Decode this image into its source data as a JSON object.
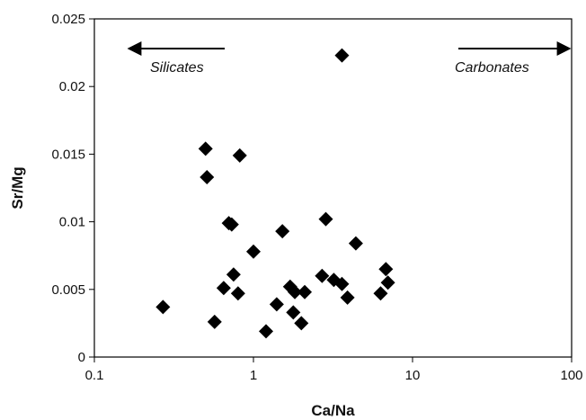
{
  "chart_data": {
    "type": "scatter",
    "title": "",
    "xlabel": "Ca/Na",
    "ylabel": "Sr/Mg",
    "xscale": "log",
    "xlim": [
      0.1,
      100
    ],
    "ylim": [
      0,
      0.025
    ],
    "x_ticks": [
      0.1,
      1,
      10,
      100
    ],
    "x_tick_labels": [
      "0.1",
      "1",
      "10",
      "100"
    ],
    "y_ticks": [
      0,
      0.005,
      0.01,
      0.015,
      0.02,
      0.025
    ],
    "y_tick_labels": [
      "0",
      "0.005",
      "0.01",
      "0.015",
      "0.02",
      "0.025"
    ],
    "grid": false,
    "marker": "diamond",
    "marker_color": "#000000",
    "annotations": [
      {
        "text": "Silicates",
        "arrow": "left"
      },
      {
        "text": "Carbonates",
        "arrow": "right"
      }
    ],
    "points": [
      {
        "x": 0.27,
        "y": 0.0037
      },
      {
        "x": 0.5,
        "y": 0.0154
      },
      {
        "x": 0.51,
        "y": 0.0133
      },
      {
        "x": 0.57,
        "y": 0.0026
      },
      {
        "x": 0.65,
        "y": 0.0051
      },
      {
        "x": 0.7,
        "y": 0.0099
      },
      {
        "x": 0.73,
        "y": 0.0098
      },
      {
        "x": 0.75,
        "y": 0.0061
      },
      {
        "x": 0.8,
        "y": 0.0047
      },
      {
        "x": 0.82,
        "y": 0.0149
      },
      {
        "x": 1.0,
        "y": 0.0078
      },
      {
        "x": 1.2,
        "y": 0.0019
      },
      {
        "x": 1.4,
        "y": 0.0039
      },
      {
        "x": 1.52,
        "y": 0.0093
      },
      {
        "x": 1.7,
        "y": 0.0052
      },
      {
        "x": 1.78,
        "y": 0.0033
      },
      {
        "x": 1.82,
        "y": 0.0048
      },
      {
        "x": 2.0,
        "y": 0.0025
      },
      {
        "x": 2.1,
        "y": 0.0048
      },
      {
        "x": 2.7,
        "y": 0.006
      },
      {
        "x": 2.85,
        "y": 0.0102
      },
      {
        "x": 3.2,
        "y": 0.0057
      },
      {
        "x": 3.6,
        "y": 0.0223
      },
      {
        "x": 3.6,
        "y": 0.0054
      },
      {
        "x": 3.9,
        "y": 0.0044
      },
      {
        "x": 4.4,
        "y": 0.0084
      },
      {
        "x": 6.3,
        "y": 0.0047
      },
      {
        "x": 6.8,
        "y": 0.0065
      },
      {
        "x": 7.0,
        "y": 0.0055
      }
    ]
  }
}
